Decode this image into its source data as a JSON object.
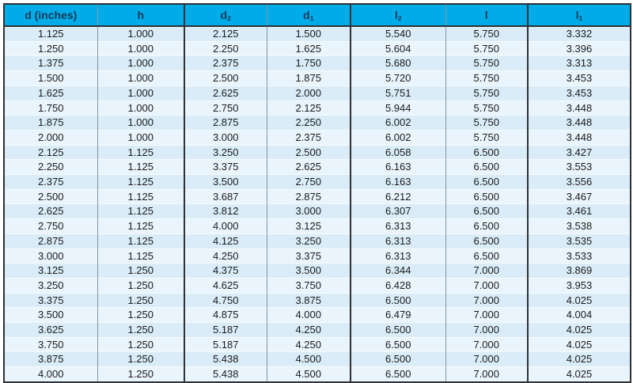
{
  "colors": {
    "header_bg": "#00ace8",
    "header_text": "#16395c",
    "row_odd": "#d9ecf8",
    "row_even": "#e9f4fc",
    "frame_border": "#2e3236",
    "thin_separator": "#8696a1",
    "cell_text": "#1b1b1b"
  },
  "table": {
    "columns": [
      {
        "base": "d (inches)",
        "sub": ""
      },
      {
        "base": "h",
        "sub": ""
      },
      {
        "base": "d",
        "sub": "2"
      },
      {
        "base": "d",
        "sub": "1"
      },
      {
        "base": "l",
        "sub": "2"
      },
      {
        "base": "l",
        "sub": ""
      },
      {
        "base": "l",
        "sub": "1"
      }
    ],
    "rows": [
      [
        "1.125",
        "1.000",
        "2.125",
        "1.500",
        "5.540",
        "5.750",
        "3.332"
      ],
      [
        "1.250",
        "1.000",
        "2.250",
        "1.625",
        "5.604",
        "5.750",
        "3.396"
      ],
      [
        "1.375",
        "1.000",
        "2.375",
        "1.750",
        "5.680",
        "5.750",
        "3.313"
      ],
      [
        "1.500",
        "1.000",
        "2.500",
        "1.875",
        "5.720",
        "5.750",
        "3.453"
      ],
      [
        "1.625",
        "1.000",
        "2.625",
        "2.000",
        "5.751",
        "5.750",
        "3.453"
      ],
      [
        "1.750",
        "1.000",
        "2.750",
        "2.125",
        "5.944",
        "5.750",
        "3.448"
      ],
      [
        "1.875",
        "1.000",
        "2.875",
        "2.250",
        "6.002",
        "5.750",
        "3.448"
      ],
      [
        "2.000",
        "1.000",
        "3.000",
        "2.375",
        "6.002",
        "5.750",
        "3.448"
      ],
      [
        "2.125",
        "1.125",
        "3.250",
        "2.500",
        "6.058",
        "6.500",
        "3.427"
      ],
      [
        "2.250",
        "1.125",
        "3.375",
        "2.625",
        "6.163",
        "6.500",
        "3.553"
      ],
      [
        "2.375",
        "1.125",
        "3.500",
        "2.750",
        "6.163",
        "6.500",
        "3.556"
      ],
      [
        "2.500",
        "1.125",
        "3.687",
        "2.875",
        "6.212",
        "6.500",
        "3.467"
      ],
      [
        "2.625",
        "1.125",
        "3.812",
        "3.000",
        "6.307",
        "6.500",
        "3.461"
      ],
      [
        "2.750",
        "1.125",
        "4.000",
        "3.125",
        "6.313",
        "6.500",
        "3.538"
      ],
      [
        "2.875",
        "1.125",
        "4.125",
        "3.250",
        "6.313",
        "6.500",
        "3.535"
      ],
      [
        "3.000",
        "1.125",
        "4.250",
        "3.375",
        "6.313",
        "6.500",
        "3.533"
      ],
      [
        "3.125",
        "1.250",
        "4.375",
        "3.500",
        "6.344",
        "7.000",
        "3.869"
      ],
      [
        "3.250",
        "1.250",
        "4.625",
        "3.750",
        "6.428",
        "7.000",
        "3.953"
      ],
      [
        "3.375",
        "1.250",
        "4.750",
        "3.875",
        "6.500",
        "7.000",
        "4.025"
      ],
      [
        "3.500",
        "1.250",
        "4.875",
        "4.000",
        "6.479",
        "7.000",
        "4.004"
      ],
      [
        "3.625",
        "1.250",
        "5.187",
        "4.250",
        "6.500",
        "7.000",
        "4.025"
      ],
      [
        "3.750",
        "1.250",
        "5.187",
        "4.250",
        "6.500",
        "7.000",
        "4.025"
      ],
      [
        "3.875",
        "1.250",
        "5.438",
        "4.500",
        "6.500",
        "7.000",
        "4.025"
      ],
      [
        "4.000",
        "1.250",
        "5.438",
        "4.500",
        "6.500",
        "7.000",
        "4.025"
      ]
    ]
  }
}
